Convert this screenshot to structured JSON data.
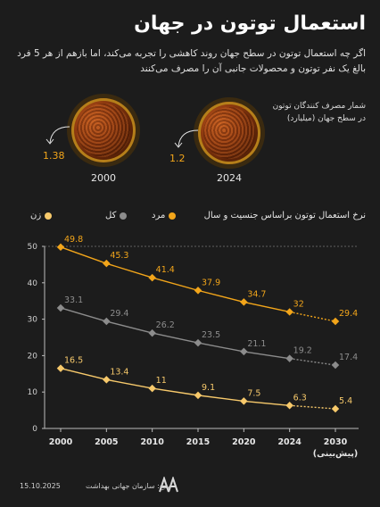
{
  "header": {
    "title": "استعمال توتون در جهان",
    "intro": "اگر چه استعمال توتون در سطح جهان روند کاهشی را تجربه می‌کند، اما بازهم از هر 5 فرد بالغ یک نفر توتون و محصولات جانبی آن را مصرف می‌کنند"
  },
  "consumers": {
    "label": "شمار مصرف کنندگان توتون در سطح جهان (میلیارد)",
    "items": [
      {
        "year": "2000",
        "value": "1.38"
      },
      {
        "year": "2024",
        "value": "1.2"
      }
    ]
  },
  "legend": {
    "subtitle": "نرخ استعمال توتون براساس جنسیت و سال",
    "men": "مرد",
    "total": "کل",
    "women": "زن"
  },
  "colors": {
    "men": "#f2a51a",
    "total": "#8c8c8c",
    "women": "#f7c96b",
    "accent": "#f2a51a"
  },
  "chart_data": {
    "type": "line",
    "x": [
      "2000",
      "2005",
      "2010",
      "2015",
      "2020",
      "2024",
      "2030"
    ],
    "x_last_label": "(پیش‌بینی)",
    "ylim": [
      0,
      50
    ],
    "yticks": [
      0,
      10,
      20,
      30,
      40,
      50
    ],
    "grid": false,
    "forecast_from_index": 5,
    "series": [
      {
        "name": "مرد",
        "key": "men",
        "values": [
          49.8,
          45.3,
          41.4,
          37.9,
          34.7,
          32,
          29.4
        ],
        "labels": [
          "49.8",
          "45.3",
          "41.4",
          "37.9",
          "34.7",
          "32",
          "29.4"
        ]
      },
      {
        "name": "کل",
        "key": "total",
        "values": [
          33.1,
          29.4,
          26.2,
          23.5,
          21.1,
          19.2,
          17.4
        ],
        "labels": [
          "33.1",
          "29.4",
          "26.2",
          "23.5",
          "21.1",
          "19.2",
          "17.4"
        ]
      },
      {
        "name": "زن",
        "key": "women",
        "values": [
          16.5,
          13.4,
          11,
          9.1,
          7.5,
          6.3,
          5.4
        ],
        "labels": [
          "16.5",
          "13.4",
          "11",
          "9.1",
          "7.5",
          "6.3",
          "5.4"
        ]
      }
    ]
  },
  "footer": {
    "date": "15.10.2025",
    "source": "منبع: سازمان جهانی بهداشت"
  }
}
